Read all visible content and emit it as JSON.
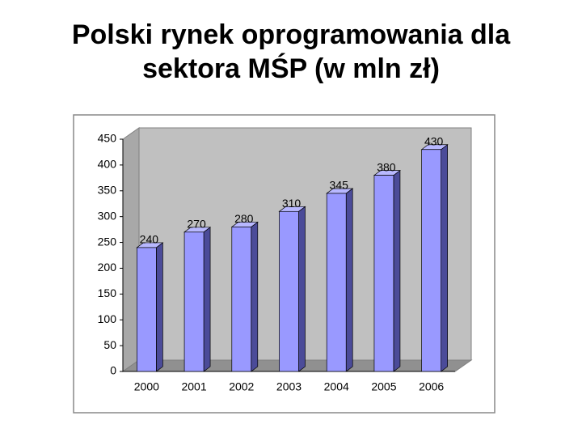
{
  "chart_data": {
    "type": "bar",
    "title": "Polski rynek oprogramowania dla sektora MŚP (w mln zł)",
    "categories": [
      "2000",
      "2001",
      "2002",
      "2003",
      "2004",
      "2005",
      "2006"
    ],
    "values": [
      240,
      270,
      280,
      310,
      345,
      380,
      430
    ],
    "color": "#9999ff",
    "ylim": [
      0,
      450
    ],
    "yticks": [
      0,
      50,
      100,
      150,
      200,
      250,
      300,
      350,
      400,
      450
    ]
  }
}
